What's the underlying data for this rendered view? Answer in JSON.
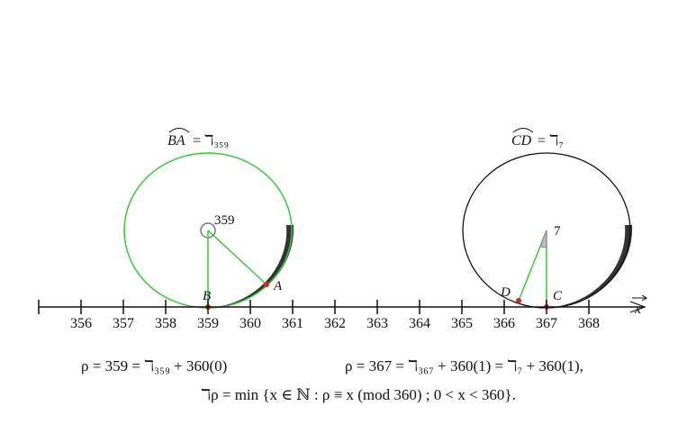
{
  "axis": {
    "label": "x",
    "ticks": [
      "356",
      "357",
      "358",
      "359",
      "360",
      "361",
      "362",
      "363",
      "364",
      "365",
      "366",
      "367",
      "368"
    ]
  },
  "circles": [
    {
      "arc": "BA",
      "value": "= ℸ₃₅₉",
      "center": "359",
      "points": [
        "B",
        "A"
      ]
    },
    {
      "arc": "CD",
      "value": "= ℸ₇",
      "center": "7",
      "points": [
        "D",
        "C"
      ]
    }
  ],
  "formulas": [
    "ρ = 359 = ℸ₃₅₉ + 360(0)",
    "ρ = 367 = ℸ₃₆₇ + 360(1) = ℸ₇ + 360(1),",
    "ℸρ = min {x ∈ ℕ : ρ ≡ x  (mod 360) ; 0 < x < 360}."
  ]
}
